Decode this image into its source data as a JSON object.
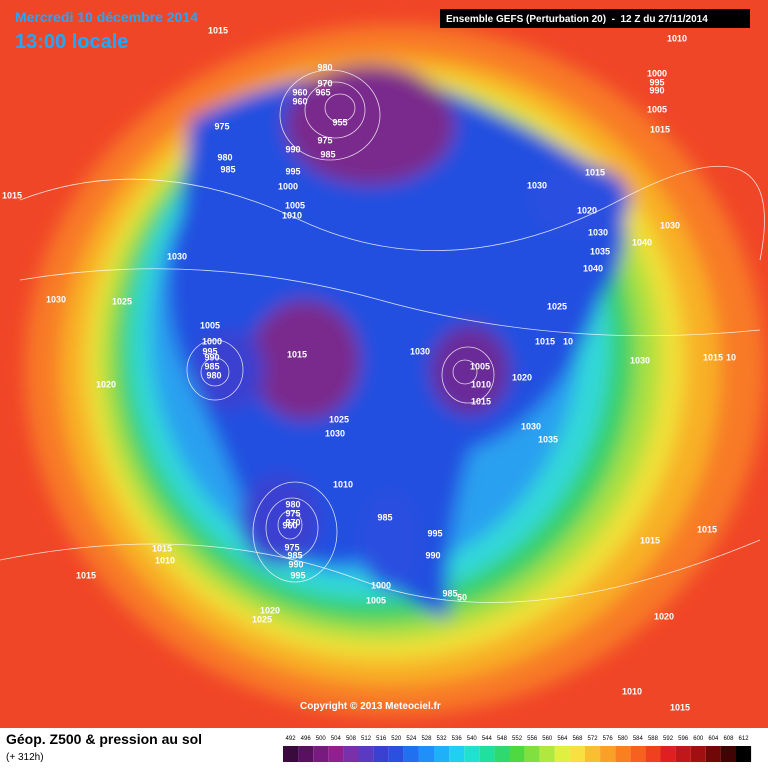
{
  "header": {
    "date": "Mercredi 10 décembre 2014",
    "time": "13:00 locale",
    "run": "Ensemble GEFS (Perturbation 20)  -  12 Z du 27/11/2014"
  },
  "map": {
    "copyright": "Copyright © 2013 Meteociel.fr",
    "pressure_labels": [
      1015,
      1010,
      980,
      970,
      965,
      960,
      960,
      955,
      975,
      985,
      975,
      980,
      985,
      990,
      995,
      1000,
      1005,
      1010,
      1015,
      1030,
      1030,
      1025,
      1000,
      995,
      990,
      1005,
      1015,
      1030,
      1015,
      1020,
      1030,
      1035,
      1040,
      1040,
      1030,
      1025,
      1015,
      10,
      1030,
      1015,
      10,
      1005,
      1000,
      995,
      990,
      985,
      980,
      1020,
      1015,
      1030,
      1005,
      1010,
      1015,
      1020,
      1025,
      1030,
      1030,
      1035,
      1010,
      980,
      975,
      970,
      960,
      975,
      985,
      990,
      995,
      985,
      995,
      990,
      1015,
      1015,
      1015,
      1010,
      1015,
      1000,
      1005,
      985,
      50,
      1020,
      1025,
      1020,
      1010,
      1015
    ]
  },
  "footer": {
    "product": "Géop. Z500 & pression au sol",
    "lead": "(+ 312h)"
  },
  "colorbar": {
    "values": [
      492,
      496,
      500,
      504,
      508,
      512,
      516,
      520,
      524,
      528,
      532,
      536,
      540,
      544,
      548,
      552,
      556,
      560,
      564,
      568,
      572,
      576,
      580,
      584,
      588,
      592,
      596,
      600,
      604,
      608,
      612
    ],
    "colors": [
      "#3a0a3e",
      "#5a1060",
      "#781a80",
      "#902090",
      "#7a30a8",
      "#5a3ac0",
      "#3a40d0",
      "#2a50e0",
      "#2070f0",
      "#2090f8",
      "#20b0f8",
      "#20d0f0",
      "#20e0d0",
      "#20e0a0",
      "#30d870",
      "#50d840",
      "#80e040",
      "#b0e840",
      "#e0f040",
      "#f8e040",
      "#f8c030",
      "#f8a028",
      "#f88020",
      "#f86020",
      "#f04020",
      "#e02020",
      "#c01818",
      "#a01010",
      "#700808",
      "#400404",
      "#000000"
    ]
  }
}
